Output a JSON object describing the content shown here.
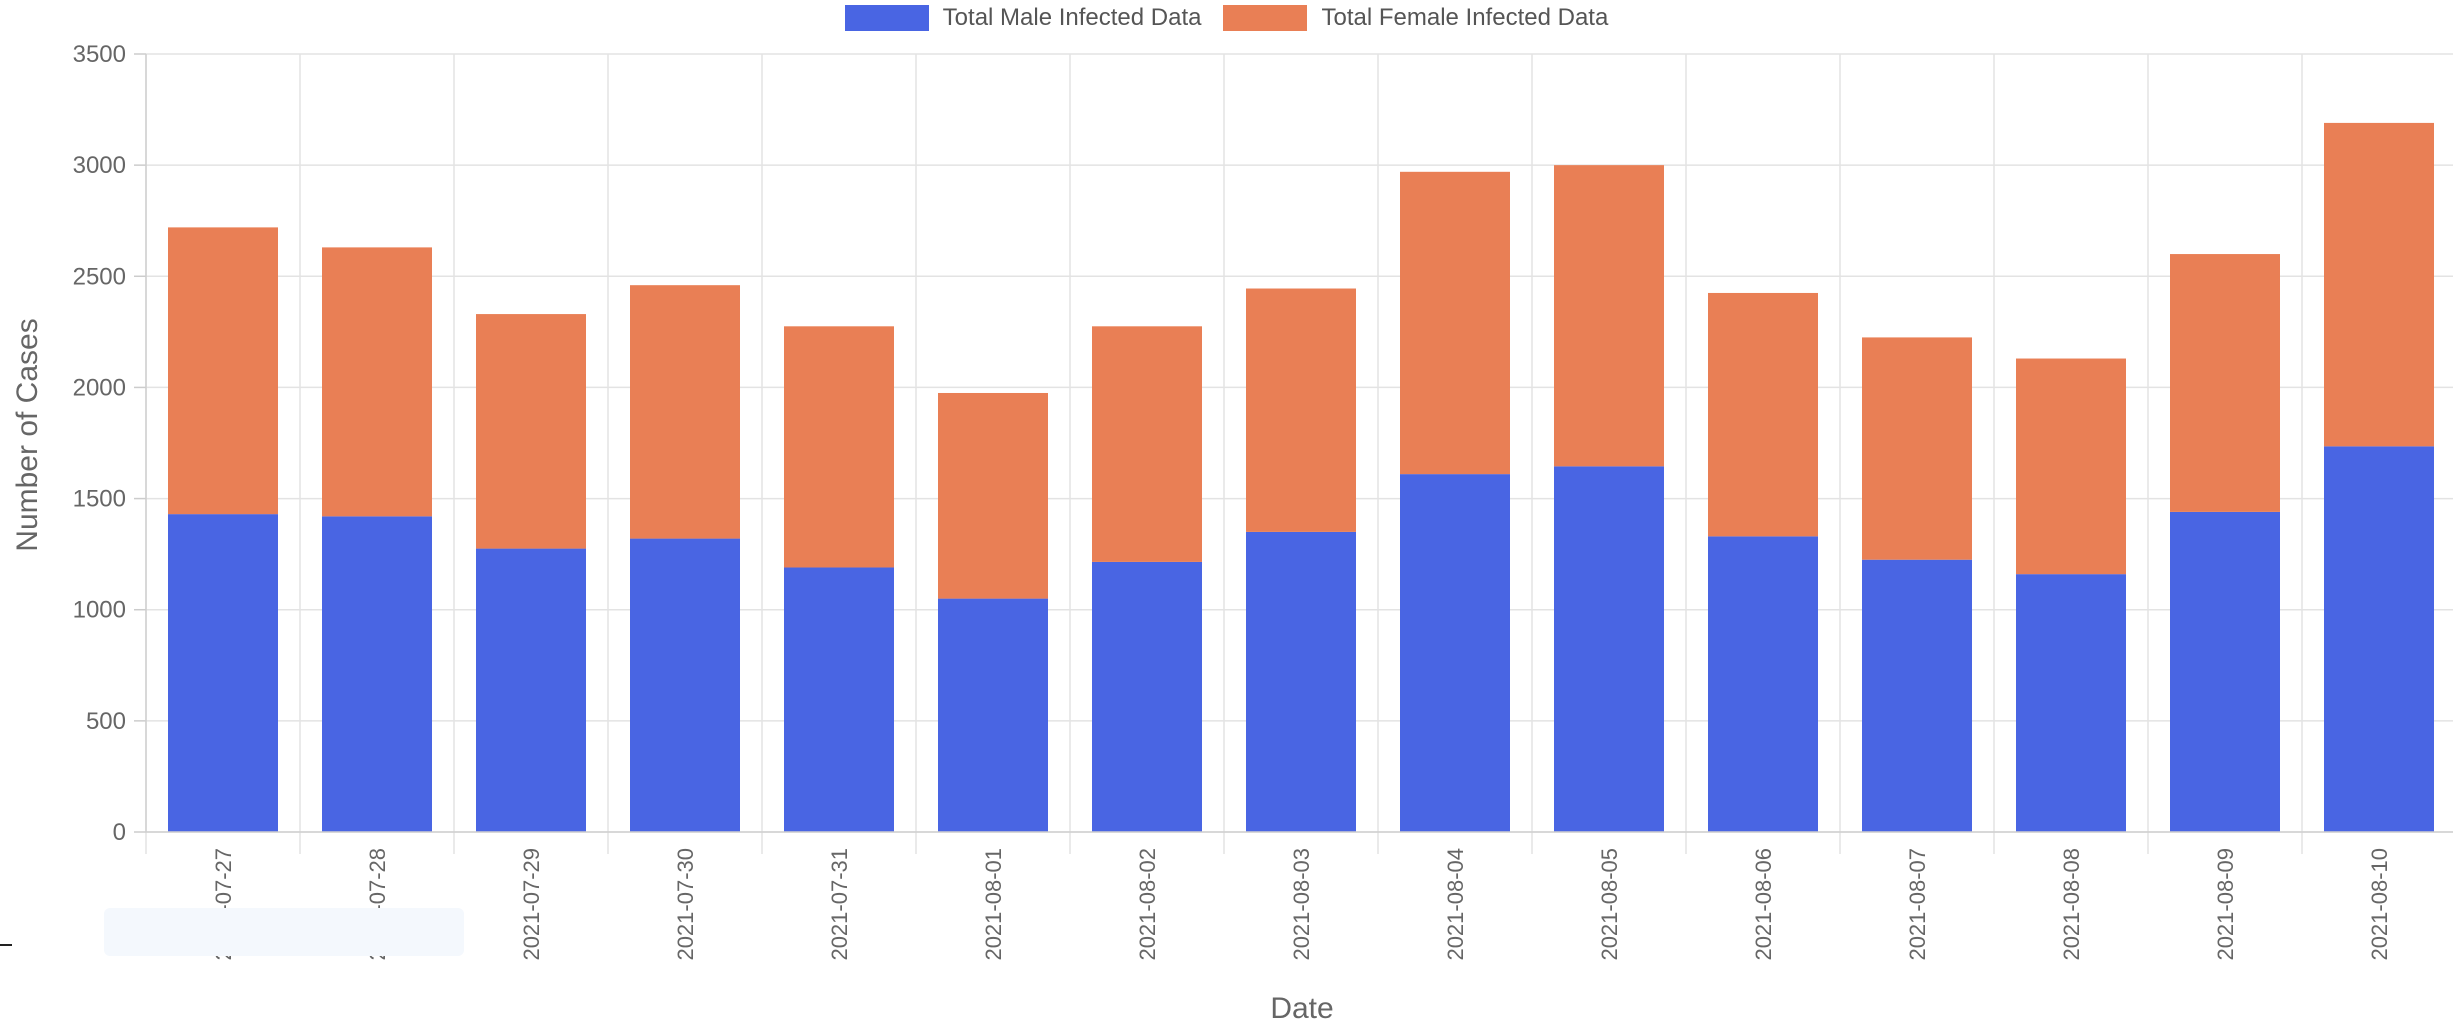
{
  "chart_data": {
    "type": "bar",
    "stacked": true,
    "categories": [
      "2021-07-27",
      "2021-07-28",
      "2021-07-29",
      "2021-07-30",
      "2021-07-31",
      "2021-08-01",
      "2021-08-02",
      "2021-08-03",
      "2021-08-04",
      "2021-08-05",
      "2021-08-06",
      "2021-08-07",
      "2021-08-08",
      "2021-08-09",
      "2021-08-10"
    ],
    "series": [
      {
        "name": "Total Male Infected Data",
        "color": "#4965e3",
        "values": [
          1430,
          1420,
          1275,
          1320,
          1190,
          1050,
          1215,
          1350,
          1610,
          1645,
          1330,
          1225,
          1160,
          1440,
          1735
        ]
      },
      {
        "name": "Total Female Infected Data",
        "color": "#e97f55",
        "values": [
          1290,
          1210,
          1055,
          1140,
          1085,
          925,
          1060,
          1095,
          1360,
          1355,
          1095,
          1000,
          970,
          1160,
          1455
        ]
      }
    ],
    "xlabel": "Date",
    "ylabel": "Number of Cases",
    "ylim": [
      0,
      3500
    ],
    "yticks": [
      0,
      500,
      1000,
      1500,
      2000,
      2500,
      3000,
      3500
    ],
    "grid": true,
    "legend": "top-center"
  }
}
